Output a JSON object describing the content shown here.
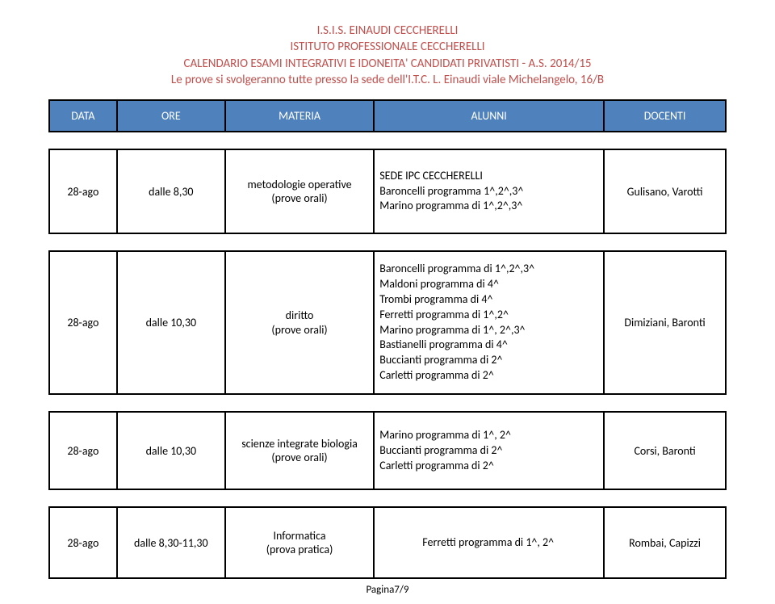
{
  "header": {
    "line1": "I.S.I.S. EINAUDI CECCHERELLI",
    "line2": "ISTITUTO PROFESSIONALE CECCHERELLI",
    "line3": "CALENDARIO  ESAMI INTEGRATIVI E IDONEITA'  CANDIDATI PRIVATISTI   -  A.S. 2014/15",
    "line4": "Le prove si svolgeranno tutte presso la sede dell'I.T.C. L. Einaudi viale Michelangelo, 16/B",
    "color": "#c0504d"
  },
  "table": {
    "header_bg": "#4f81bd",
    "header_fg": "#ffffff",
    "border_color": "#000000",
    "columns": [
      "DATA",
      "ORE",
      "MATERIA",
      "ALUNNI",
      "DOCENTI"
    ]
  },
  "rows": [
    {
      "data": "28-ago",
      "ore": "dalle 8,30",
      "materia_line1": "metodologie operative",
      "materia_line2": "(prove orali)",
      "alunni": [
        "SEDE IPC CECCHERELLI",
        "Baroncelli programma 1^,2^,3^",
        "Marino programma di 1^,2^,3^"
      ],
      "docenti": "Gulisano, Varotti"
    },
    {
      "data": "28-ago",
      "ore": "dalle 10,30",
      "materia_line1": "diritto",
      "materia_line2": "(prove orali)",
      "alunni": [
        "Baroncelli programma di 1^,2^,3^",
        "Maldoni programma di 4^",
        "Trombi programma di 4^",
        "Ferretti programma di 1^,2^",
        "Marino programma di 1^, 2^,3^",
        "Bastianelli programma di 4^",
        "Buccianti programma di 2^",
        "Carletti programma di 2^"
      ],
      "docenti": "Dimiziani, Baronti"
    },
    {
      "data": "28-ago",
      "ore": "dalle 10,30",
      "materia_line1": "scienze integrate biologia",
      "materia_line2": "(prove orali)",
      "alunni": [
        "Marino programma di 1^, 2^",
        "Buccianti programma di 2^",
        "Carletti programma di 2^"
      ],
      "docenti": "Corsi, Baronti"
    },
    {
      "data": "28-ago",
      "ore": "dalle 8,30-11,30",
      "materia_line1": "Informatica",
      "materia_line2": "(prova pratica)",
      "alunni": [
        "Ferretti programma di 1^, 2^"
      ],
      "alunni_center": true,
      "docenti": "Rombai, Capizzi"
    }
  ],
  "footer": "Pagina7/9"
}
